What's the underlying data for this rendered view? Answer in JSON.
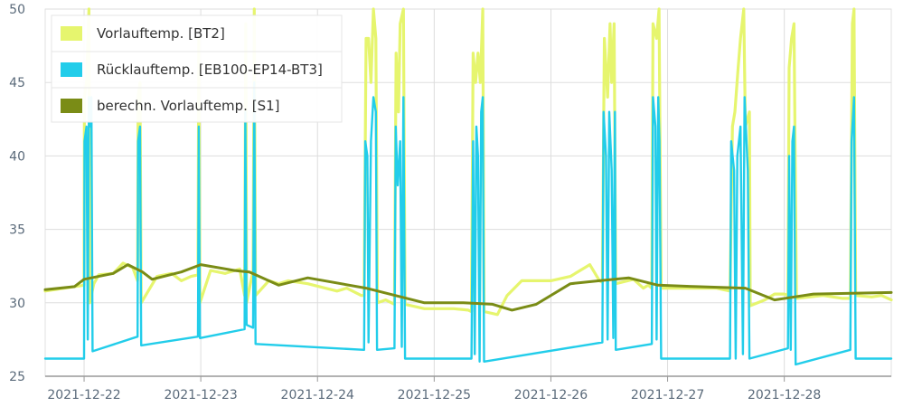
{
  "chart_data": {
    "type": "line",
    "title": "",
    "xlabel": "",
    "ylabel": "",
    "ylim": [
      25,
      50
    ],
    "yticks": [
      "25",
      "30",
      "35",
      "40",
      "45",
      "50"
    ],
    "xlim": [
      "2021-12-21 16:00",
      "2021-12-28 22:00"
    ],
    "xticks": [
      "2021-12-22",
      "2021-12-23",
      "2021-12-24",
      "2021-12-25",
      "2021-12-26",
      "2021-12-27",
      "2021-12-28"
    ],
    "grid": true,
    "legend_position": "top-left",
    "colors": {
      "bt2": "#e6f56e",
      "bt3": "#22cdea",
      "s1": "#7a8c16",
      "grid": "#dddddd",
      "axis": "#999999"
    },
    "legend": [
      {
        "key": "bt2",
        "label": "Vorlauftemp. [BT2]"
      },
      {
        "key": "bt3",
        "label": "Rücklauftemp. [EB100-EP14-BT3]"
      },
      {
        "key": "s1",
        "label": "berechn. Vorlauftemp. [S1]"
      }
    ],
    "series": [
      {
        "key": "bt2",
        "name": "Vorlauftemp. [BT2]",
        "points": [
          [
            "2021-12-21 16:00",
            30.8
          ],
          [
            "2021-12-21 22:00",
            31.1
          ],
          [
            "2021-12-22 00:00",
            31.2
          ],
          [
            "2021-12-22 00:04",
            44
          ],
          [
            "2021-12-22 00:30",
            45
          ],
          [
            "2021-12-22 01:00",
            50
          ],
          [
            "2021-12-22 01:10",
            30
          ],
          [
            "2021-12-22 02:00",
            31.3
          ],
          [
            "2021-12-22 03:00",
            31.9
          ],
          [
            "2021-12-22 06:00",
            32.0
          ],
          [
            "2021-12-22 08:00",
            32.7
          ],
          [
            "2021-12-22 10:00",
            32.4
          ],
          [
            "2021-12-22 11:00",
            31.5
          ],
          [
            "2021-12-22 11:07",
            44
          ],
          [
            "2021-12-22 11:30",
            45
          ],
          [
            "2021-12-22 11:45",
            30
          ],
          [
            "2021-12-22 15:00",
            31.8
          ],
          [
            "2021-12-22 18:00",
            32.0
          ],
          [
            "2021-12-22 20:00",
            31.5
          ],
          [
            "2021-12-22 22:00",
            31.8
          ],
          [
            "2021-12-22 23:25",
            31.9
          ],
          [
            "2021-12-22 23:35",
            48
          ],
          [
            "2021-12-22 23:50",
            30
          ],
          [
            "2021-12-23 02:00",
            32.2
          ],
          [
            "2021-12-23 05:00",
            32.0
          ],
          [
            "2021-12-23 08:00",
            32.3
          ],
          [
            "2021-12-23 09:00",
            30.5
          ],
          [
            "2021-12-23 09:15",
            49
          ],
          [
            "2021-12-23 09:25",
            30
          ],
          [
            "2021-12-23 10:45",
            32.2
          ],
          [
            "2021-12-23 11:00",
            50
          ],
          [
            "2021-12-23 11:15",
            30.5
          ],
          [
            "2021-12-23 14:00",
            31.5
          ],
          [
            "2021-12-23 16:00",
            31.3
          ],
          [
            "2021-12-23 18:00",
            31.5
          ],
          [
            "2021-12-23 22:00",
            31.3
          ],
          [
            "2021-12-24 04:00",
            30.8
          ],
          [
            "2021-12-24 06:00",
            31.0
          ],
          [
            "2021-12-24 09:00",
            30.5
          ],
          [
            "2021-12-24 09:35",
            30.5
          ],
          [
            "2021-12-24 10:00",
            48
          ],
          [
            "2021-12-24 10:30",
            48
          ],
          [
            "2021-12-24 11:00",
            45
          ],
          [
            "2021-12-24 11:30",
            50
          ],
          [
            "2021-12-24 12:00",
            48
          ],
          [
            "2021-12-24 12:20",
            30
          ],
          [
            "2021-12-24 14:00",
            30.2
          ],
          [
            "2021-12-24 15:50",
            29.9
          ],
          [
            "2021-12-24 16:10",
            47
          ],
          [
            "2021-12-24 16:40",
            43
          ],
          [
            "2021-12-24 17:00",
            49
          ],
          [
            "2021-12-24 17:40",
            50
          ],
          [
            "2021-12-24 18:00",
            29.9
          ],
          [
            "2021-12-24 22:00",
            29.6
          ],
          [
            "2021-12-25 04:00",
            29.6
          ],
          [
            "2021-12-25 07:00",
            29.5
          ],
          [
            "2021-12-25 07:40",
            29.4
          ],
          [
            "2021-12-25 08:00",
            47
          ],
          [
            "2021-12-25 08:30",
            45
          ],
          [
            "2021-12-25 09:00",
            47
          ],
          [
            "2021-12-25 09:30",
            45
          ],
          [
            "2021-12-25 10:00",
            50
          ],
          [
            "2021-12-25 10:15",
            29.4
          ],
          [
            "2021-12-25 13:00",
            29.2
          ],
          [
            "2021-12-25 15:00",
            30.5
          ],
          [
            "2021-12-25 18:00",
            31.5
          ],
          [
            "2021-12-26 00:00",
            31.5
          ],
          [
            "2021-12-26 04:00",
            31.8
          ],
          [
            "2021-12-26 08:00",
            32.6
          ],
          [
            "2021-12-26 10:00",
            31.5
          ],
          [
            "2021-12-26 10:35",
            31.4
          ],
          [
            "2021-12-26 11:00",
            48
          ],
          [
            "2021-12-26 11:40",
            44
          ],
          [
            "2021-12-26 12:10",
            49
          ],
          [
            "2021-12-26 12:30",
            45
          ],
          [
            "2021-12-26 13:00",
            49
          ],
          [
            "2021-12-26 13:20",
            31.3
          ],
          [
            "2021-12-26 17:00",
            31.6
          ],
          [
            "2021-12-26 19:00",
            31.0
          ],
          [
            "2021-12-26 20:00",
            31.2
          ],
          [
            "2021-12-26 20:45",
            31.0
          ],
          [
            "2021-12-26 21:00",
            49
          ],
          [
            "2021-12-26 21:45",
            48
          ],
          [
            "2021-12-26 22:15",
            50
          ],
          [
            "2021-12-26 22:40",
            31.0
          ],
          [
            "2021-12-27 04:00",
            31.0
          ],
          [
            "2021-12-27 10:00",
            31.0
          ],
          [
            "2021-12-27 12:50",
            30.8
          ],
          [
            "2021-12-27 13:20",
            42
          ],
          [
            "2021-12-27 13:50",
            43
          ],
          [
            "2021-12-27 14:30",
            46
          ],
          [
            "2021-12-27 15:00",
            48
          ],
          [
            "2021-12-27 15:40",
            50
          ],
          [
            "2021-12-27 16:00",
            42
          ],
          [
            "2021-12-27 16:50",
            43
          ],
          [
            "2021-12-27 17:00",
            29.8
          ],
          [
            "2021-12-27 20:00",
            30.2
          ],
          [
            "2021-12-27 22:00",
            30.6
          ],
          [
            "2021-12-28 00:00",
            30.6
          ],
          [
            "2021-12-28 00:45",
            30.5
          ],
          [
            "2021-12-28 01:00",
            46
          ],
          [
            "2021-12-28 01:30",
            48
          ],
          [
            "2021-12-28 02:00",
            49
          ],
          [
            "2021-12-28 02:30",
            30.3
          ],
          [
            "2021-12-28 08:00",
            30.5
          ],
          [
            "2021-12-28 12:00",
            30.3
          ],
          [
            "2021-12-28 13:35",
            30.3
          ],
          [
            "2021-12-28 14:00",
            49
          ],
          [
            "2021-12-28 14:20",
            50
          ],
          [
            "2021-12-28 14:40",
            30.5
          ],
          [
            "2021-12-28 18:00",
            30.4
          ],
          [
            "2021-12-28 20:00",
            30.5
          ],
          [
            "2021-12-28 22:00",
            30.2
          ]
        ]
      },
      {
        "key": "bt3",
        "name": "Rücklauftemp. [EB100-EP14-BT3]",
        "points": [
          [
            "2021-12-21 16:00",
            26.2
          ],
          [
            "2021-12-22 00:00",
            26.2
          ],
          [
            "2021-12-22 00:05",
            41
          ],
          [
            "2021-12-22 00:30",
            42
          ],
          [
            "2021-12-22 00:45",
            27.5
          ],
          [
            "2021-12-22 01:00",
            44
          ],
          [
            "2021-12-22 01:15",
            42
          ],
          [
            "2021-12-22 01:30",
            44
          ],
          [
            "2021-12-22 01:45",
            26.7
          ],
          [
            "2021-12-22 11:00",
            27.7
          ],
          [
            "2021-12-22 11:07",
            41
          ],
          [
            "2021-12-22 11:30",
            42
          ],
          [
            "2021-12-22 11:45",
            27.1
          ],
          [
            "2021-12-22 23:25",
            27.7
          ],
          [
            "2021-12-22 23:35",
            42
          ],
          [
            "2021-12-22 23:50",
            27.6
          ],
          [
            "2021-12-23 09:00",
            28.2
          ],
          [
            "2021-12-23 09:10",
            43
          ],
          [
            "2021-12-23 09:25",
            28.5
          ],
          [
            "2021-12-23 10:45",
            28.3
          ],
          [
            "2021-12-23 11:00",
            45
          ],
          [
            "2021-12-23 11:15",
            27.2
          ],
          [
            "2021-12-24 09:35",
            26.8
          ],
          [
            "2021-12-24 09:50",
            41
          ],
          [
            "2021-12-24 10:15",
            40
          ],
          [
            "2021-12-24 10:30",
            27.3
          ],
          [
            "2021-12-24 11:00",
            41
          ],
          [
            "2021-12-24 11:30",
            44
          ],
          [
            "2021-12-24 12:00",
            43
          ],
          [
            "2021-12-24 12:15",
            26.8
          ],
          [
            "2021-12-24 15:50",
            26.9
          ],
          [
            "2021-12-24 16:05",
            42
          ],
          [
            "2021-12-24 16:30",
            38
          ],
          [
            "2021-12-24 17:00",
            41
          ],
          [
            "2021-12-24 17:20",
            27.0
          ],
          [
            "2021-12-24 17:40",
            44
          ],
          [
            "2021-12-24 18:00",
            26.2
          ],
          [
            "2021-12-25 07:40",
            26.2
          ],
          [
            "2021-12-25 08:00",
            41
          ],
          [
            "2021-12-25 08:20",
            26.5
          ],
          [
            "2021-12-25 08:40",
            42
          ],
          [
            "2021-12-25 09:00",
            40
          ],
          [
            "2021-12-25 09:20",
            26.0
          ],
          [
            "2021-12-25 09:40",
            43
          ],
          [
            "2021-12-25 10:00",
            44
          ],
          [
            "2021-12-25 10:15",
            26.0
          ],
          [
            "2021-12-26 10:35",
            27.3
          ],
          [
            "2021-12-26 10:50",
            43
          ],
          [
            "2021-12-26 11:20",
            40
          ],
          [
            "2021-12-26 11:40",
            27.5
          ],
          [
            "2021-12-26 12:00",
            43
          ],
          [
            "2021-12-26 12:30",
            39
          ],
          [
            "2021-12-26 12:50",
            27.6
          ],
          [
            "2021-12-26 13:10",
            43
          ],
          [
            "2021-12-26 13:20",
            26.8
          ],
          [
            "2021-12-26 20:45",
            27.2
          ],
          [
            "2021-12-26 21:00",
            44
          ],
          [
            "2021-12-26 21:30",
            42
          ],
          [
            "2021-12-26 21:45",
            27.5
          ],
          [
            "2021-12-26 22:05",
            44
          ],
          [
            "2021-12-26 22:20",
            41
          ],
          [
            "2021-12-26 22:40",
            26.2
          ],
          [
            "2021-12-27 12:50",
            26.2
          ],
          [
            "2021-12-27 13:05",
            41
          ],
          [
            "2021-12-27 13:40",
            39
          ],
          [
            "2021-12-27 14:00",
            26.2
          ],
          [
            "2021-12-27 14:20",
            40
          ],
          [
            "2021-12-27 15:00",
            42
          ],
          [
            "2021-12-27 15:30",
            26.5
          ],
          [
            "2021-12-27 15:50",
            44
          ],
          [
            "2021-12-27 16:30",
            39
          ],
          [
            "2021-12-27 16:50",
            26.2
          ],
          [
            "2021-12-28 00:45",
            26.9
          ],
          [
            "2021-12-28 01:00",
            40
          ],
          [
            "2021-12-28 01:20",
            26.8
          ],
          [
            "2021-12-28 01:40",
            41
          ],
          [
            "2021-12-28 02:00",
            42
          ],
          [
            "2021-12-28 02:20",
            25.8
          ],
          [
            "2021-12-28 13:35",
            26.8
          ],
          [
            "2021-12-28 13:50",
            41
          ],
          [
            "2021-12-28 14:20",
            44
          ],
          [
            "2021-12-28 14:40",
            26.2
          ],
          [
            "2021-12-28 22:00",
            26.2
          ]
        ]
      },
      {
        "key": "s1",
        "name": "berechn. Vorlauftemp. [S1]",
        "points": [
          [
            "2021-12-21 16:00",
            30.9
          ],
          [
            "2021-12-21 22:00",
            31.1
          ],
          [
            "2021-12-22 00:00",
            31.6
          ],
          [
            "2021-12-22 06:00",
            32.0
          ],
          [
            "2021-12-22 09:00",
            32.6
          ],
          [
            "2021-12-22 12:00",
            32.1
          ],
          [
            "2021-12-22 14:00",
            31.6
          ],
          [
            "2021-12-22 20:00",
            32.1
          ],
          [
            "2021-12-23 00:00",
            32.6
          ],
          [
            "2021-12-23 07:00",
            32.2
          ],
          [
            "2021-12-23 10:00",
            32.1
          ],
          [
            "2021-12-23 16:00",
            31.2
          ],
          [
            "2021-12-23 22:00",
            31.7
          ],
          [
            "2021-12-24 10:00",
            31.0
          ],
          [
            "2021-12-24 22:00",
            30.0
          ],
          [
            "2021-12-25 06:00",
            30.0
          ],
          [
            "2021-12-25 12:00",
            29.9
          ],
          [
            "2021-12-25 16:00",
            29.5
          ],
          [
            "2021-12-25 21:00",
            29.9
          ],
          [
            "2021-12-26 04:00",
            31.3
          ],
          [
            "2021-12-26 10:00",
            31.5
          ],
          [
            "2021-12-26 16:00",
            31.7
          ],
          [
            "2021-12-26 22:00",
            31.2
          ],
          [
            "2021-12-27 06:00",
            31.1
          ],
          [
            "2021-12-27 16:00",
            31.0
          ],
          [
            "2021-12-27 22:00",
            30.2
          ],
          [
            "2021-12-28 06:00",
            30.6
          ],
          [
            "2021-12-28 22:00",
            30.7
          ]
        ]
      }
    ]
  }
}
